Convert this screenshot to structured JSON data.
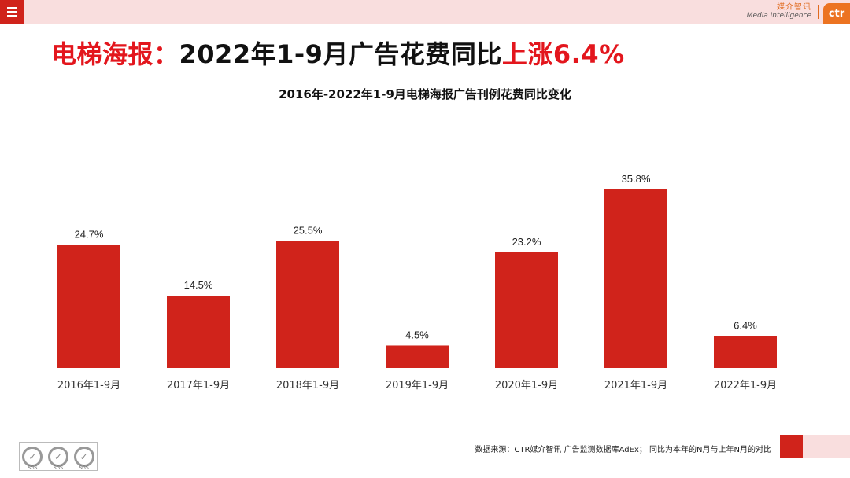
{
  "header": {
    "brand_cn": "媒介智讯",
    "brand_en": "Media Intelligence",
    "brand_logo": "ctr"
  },
  "headline": {
    "part1": "电梯海报：",
    "part2": "2022年1-9月广告花费同比",
    "part3": "上涨6.4%"
  },
  "chart_data": {
    "type": "bar",
    "title": "2016年-2022年1-9月电梯海报广告刊例花费同比变化",
    "categories": [
      "2016年1-9月",
      "2017年1-9月",
      "2018年1-9月",
      "2019年1-9月",
      "2020年1-9月",
      "2021年1-9月",
      "2022年1-9月"
    ],
    "values": [
      24.7,
      14.5,
      25.5,
      4.5,
      23.2,
      35.8,
      6.4
    ],
    "labels": [
      "24.7%",
      "14.5%",
      "25.5%",
      "4.5%",
      "23.2%",
      "35.8%",
      "6.4%"
    ],
    "unit": "%",
    "ylim": [
      0,
      35.8
    ],
    "grid": false,
    "color": "#d0231b"
  },
  "footer": {
    "note": "数据来源：CTR媒介智讯 广告监测数据库AdEx； 同比为本年的N月与上年N月的对比",
    "cert_label": "SGS"
  },
  "colors": {
    "accent": "#d0231b",
    "highlight": "#e3161d",
    "pink": "#f9dede",
    "brand_orange": "#ec7321"
  }
}
